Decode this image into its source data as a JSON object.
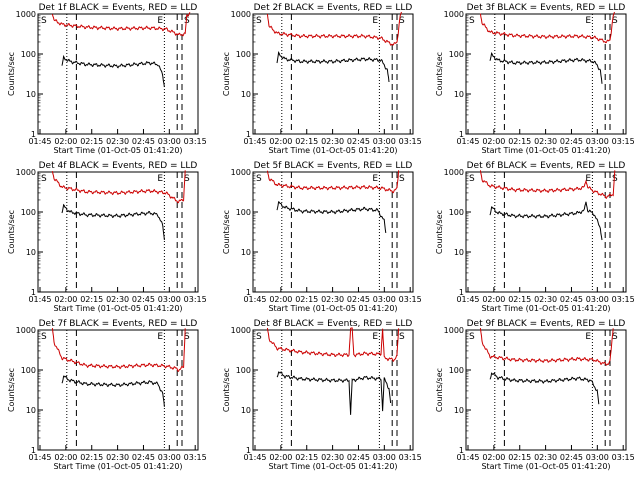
{
  "chart_data": [
    {
      "type": "line",
      "title": "Det 1f BLACK = Events, RED = LLD",
      "xlabel": "Start Time (01-Oct-05 01:41:20)",
      "ylabel": "Counts/sec",
      "xticks": [
        "01:45",
        "02:00",
        "02:15",
        "02:30",
        "02:45",
        "03:00",
        "03:15"
      ],
      "yticks": [
        "1",
        "10",
        "100",
        "1000"
      ],
      "ylim": [
        1,
        1000
      ],
      "yscale": "log",
      "xlim_min": [
        0,
        100
      ],
      "markers": [
        {
          "label": "S",
          "t": 0
        },
        {
          "label": "E",
          "t": 86
        },
        {
          "label": "S",
          "t": 95
        }
      ],
      "series": [
        {
          "color": "#cc0000",
          "t": [
            9,
            10,
            15,
            30,
            50,
            70,
            80,
            86,
            88,
            92,
            93,
            95
          ],
          "v": [
            1100,
            700,
            550,
            470,
            430,
            450,
            420,
            330,
            300,
            320,
            900,
            1100
          ]
        },
        {
          "color": "#000000",
          "t": [
            15,
            16,
            20,
            30,
            50,
            70,
            75,
            78,
            79
          ],
          "v": [
            50,
            80,
            65,
            55,
            50,
            60,
            55,
            30,
            15
          ]
        }
      ]
    },
    {
      "type": "line",
      "title": "Det 2f BLACK = Events, RED = LLD",
      "xlabel": "Start Time (01-Oct-05 01:41:20)",
      "ylabel": "Counts/sec",
      "xticks": [
        "01:45",
        "02:00",
        "02:15",
        "02:30",
        "02:45",
        "03:00",
        "03:15"
      ],
      "yticks": [
        "1",
        "10",
        "100",
        "1000"
      ],
      "ylim": [
        1,
        1000
      ],
      "yscale": "log",
      "markers": [
        {
          "label": "S",
          "t": 0
        },
        {
          "label": "E",
          "t": 86
        },
        {
          "label": "S",
          "t": 95
        }
      ],
      "series": [
        {
          "color": "#cc0000",
          "t": [
            9,
            10,
            15,
            30,
            50,
            70,
            80,
            85,
            88,
            90,
            92,
            93
          ],
          "v": [
            1100,
            500,
            330,
            280,
            280,
            280,
            250,
            190,
            170,
            200,
            900,
            1100
          ]
        },
        {
          "color": "#000000",
          "t": [
            15,
            16,
            20,
            30,
            50,
            70,
            80,
            84,
            85
          ],
          "v": [
            60,
            100,
            75,
            65,
            65,
            75,
            70,
            40,
            20
          ]
        }
      ]
    },
    {
      "type": "line",
      "title": "Det 3f BLACK = Events, RED = LLD",
      "xlabel": "Start Time (01-Oct-05 01:41:20)",
      "ylabel": "Counts/sec",
      "xticks": [
        "01:45",
        "02:00",
        "02:15",
        "02:30",
        "02:45",
        "03:00",
        "03:15"
      ],
      "yticks": [
        "1",
        "10",
        "100",
        "1000"
      ],
      "ylim": [
        1,
        1000
      ],
      "yscale": "log",
      "markers": [
        {
          "label": "S",
          "t": 0
        },
        {
          "label": "E",
          "t": 86
        },
        {
          "label": "S",
          "t": 95
        }
      ],
      "series": [
        {
          "color": "#cc0000",
          "t": [
            9,
            10,
            15,
            30,
            50,
            70,
            80,
            85,
            88,
            90,
            92,
            93
          ],
          "v": [
            1100,
            600,
            350,
            290,
            270,
            280,
            260,
            220,
            200,
            220,
            900,
            1100
          ]
        },
        {
          "color": "#000000",
          "t": [
            15,
            16,
            20,
            30,
            50,
            70,
            80,
            84,
            85
          ],
          "v": [
            70,
            95,
            70,
            60,
            62,
            72,
            65,
            40,
            18
          ]
        }
      ]
    },
    {
      "type": "line",
      "title": "Det 4f BLACK = Events, RED = LLD",
      "xlabel": "Start Time (01-Oct-05 01:41:20)",
      "ylabel": "Counts/sec",
      "xticks": [
        "01:45",
        "02:00",
        "02:15",
        "02:30",
        "02:45",
        "03:00",
        "03:15"
      ],
      "yticks": [
        "1",
        "10",
        "100",
        "1000"
      ],
      "ylim": [
        1,
        1000
      ],
      "yscale": "log",
      "markers": [
        {
          "label": "S",
          "t": 0
        },
        {
          "label": "E",
          "t": 86
        },
        {
          "label": "S",
          "t": 95
        }
      ],
      "series": [
        {
          "color": "#cc0000",
          "t": [
            9,
            10,
            15,
            30,
            50,
            70,
            80,
            86,
            88,
            91,
            92
          ],
          "v": [
            1100,
            700,
            420,
            320,
            300,
            340,
            300,
            200,
            180,
            210,
            1100
          ]
        },
        {
          "color": "#000000",
          "t": [
            15,
            16,
            20,
            30,
            50,
            70,
            75,
            78,
            79
          ],
          "v": [
            100,
            140,
            100,
            85,
            80,
            95,
            85,
            45,
            20
          ]
        }
      ]
    },
    {
      "type": "line",
      "title": "Det 5f BLACK = Events, RED = LLD",
      "xlabel": "Start Time (01-Oct-05 01:41:20)",
      "ylabel": "Counts/sec",
      "xticks": [
        "01:45",
        "02:00",
        "02:15",
        "02:30",
        "02:45",
        "03:00",
        "03:15"
      ],
      "yticks": [
        "1",
        "10",
        "100",
        "1000"
      ],
      "ylim": [
        1,
        1000
      ],
      "yscale": "log",
      "markers": [
        {
          "label": "S",
          "t": 0
        },
        {
          "label": "E",
          "t": 86
        },
        {
          "label": "S",
          "t": 95
        }
      ],
      "series": [
        {
          "color": "#cc0000",
          "t": [
            9,
            10,
            15,
            30,
            50,
            70,
            80,
            85,
            88,
            90,
            91
          ],
          "v": [
            1100,
            700,
            480,
            400,
            400,
            420,
            400,
            350,
            330,
            380,
            1100
          ]
        },
        {
          "color": "#000000",
          "t": [
            15,
            16,
            20,
            30,
            50,
            70,
            78,
            82,
            83
          ],
          "v": [
            120,
            170,
            130,
            105,
            100,
            120,
            110,
            60,
            30
          ]
        }
      ]
    },
    {
      "type": "line",
      "title": "Det 6f BLACK = Events, RED = LLD",
      "xlabel": "Start Time (01-Oct-05 01:41:20)",
      "ylabel": "Counts/sec",
      "xticks": [
        "01:45",
        "02:00",
        "02:15",
        "02:30",
        "02:45",
        "03:00",
        "03:15"
      ],
      "yticks": [
        "1",
        "10",
        "100",
        "1000"
      ],
      "ylim": [
        1,
        1000
      ],
      "yscale": "log",
      "markers": [
        {
          "label": "S",
          "t": 0
        },
        {
          "label": "E",
          "t": 86
        },
        {
          "label": "S",
          "t": 95
        }
      ],
      "series": [
        {
          "color": "#cc0000",
          "t": [
            9,
            10,
            15,
            30,
            50,
            70,
            74,
            75,
            76,
            80,
            86,
            88,
            92,
            93
          ],
          "v": [
            1100,
            650,
            450,
            360,
            340,
            380,
            420,
            650,
            420,
            330,
            260,
            240,
            280,
            1100
          ]
        },
        {
          "color": "#000000",
          "t": [
            15,
            16,
            20,
            30,
            50,
            70,
            74,
            75,
            76,
            80,
            84,
            85
          ],
          "v": [
            90,
            130,
            95,
            80,
            78,
            95,
            110,
            190,
            110,
            90,
            40,
            20
          ]
        }
      ]
    },
    {
      "type": "line",
      "title": "Det 7f BLACK = Events, RED = LLD",
      "xlabel": "Start Time (01-Oct-05 01:41:20)",
      "ylabel": "Counts/sec",
      "xticks": [
        "01:45",
        "02:00",
        "02:15",
        "02:30",
        "02:45",
        "03:00",
        "03:15"
      ],
      "yticks": [
        "1",
        "10",
        "100",
        "1000"
      ],
      "ylim": [
        1,
        1000
      ],
      "yscale": "log",
      "markers": [
        {
          "label": "S",
          "t": 0
        },
        {
          "label": "E",
          "t": 86
        },
        {
          "label": "S",
          "t": 95
        }
      ],
      "series": [
        {
          "color": "#cc0000",
          "t": [
            9,
            10,
            15,
            30,
            50,
            70,
            80,
            86,
            88,
            91,
            92
          ],
          "v": [
            1100,
            500,
            200,
            130,
            120,
            135,
            125,
            110,
            100,
            120,
            1100
          ]
        },
        {
          "color": "#000000",
          "t": [
            15,
            16,
            20,
            30,
            50,
            70,
            75,
            78,
            79
          ],
          "v": [
            50,
            70,
            55,
            45,
            42,
            50,
            45,
            25,
            12
          ]
        }
      ]
    },
    {
      "type": "line",
      "title": "Det 8f BLACK = Events, RED = LLD",
      "xlabel": "Start Time (01-Oct-05 01:41:20)",
      "ylabel": "Counts/sec",
      "xticks": [
        "01:45",
        "02:00",
        "02:15",
        "02:30",
        "02:45",
        "03:00",
        "03:15"
      ],
      "yticks": [
        "1",
        "10",
        "100",
        "1000"
      ],
      "ylim": [
        1,
        1000
      ],
      "yscale": "log",
      "markers": [
        {
          "label": "S",
          "t": 0
        },
        {
          "label": "E",
          "t": 86
        },
        {
          "label": "S",
          "t": 95
        }
      ],
      "series": [
        {
          "color": "#cc0000",
          "t": [
            9,
            10,
            15,
            30,
            50,
            60,
            61,
            62,
            63,
            64,
            70,
            78,
            80,
            81,
            82,
            88,
            90,
            91
          ],
          "v": [
            1100,
            600,
            350,
            280,
            240,
            240,
            1100,
            1100,
            240,
            240,
            260,
            250,
            260,
            1100,
            200,
            180,
            220,
            1100
          ]
        },
        {
          "color": "#000000",
          "t": [
            15,
            16,
            20,
            30,
            50,
            60,
            61,
            62,
            70,
            80,
            81,
            82,
            85,
            86
          ],
          "v": [
            70,
            90,
            70,
            60,
            55,
            55,
            8,
            55,
            65,
            60,
            10,
            60,
            35,
            15
          ]
        }
      ]
    },
    {
      "type": "line",
      "title": "Det 9f BLACK = Events, RED = LLD",
      "xlabel": "Start Time (01-Oct-05 01:41:20)",
      "ylabel": "Counts/sec",
      "xticks": [
        "01:45",
        "02:00",
        "02:15",
        "02:30",
        "02:45",
        "03:00",
        "03:15"
      ],
      "yticks": [
        "1",
        "10",
        "100",
        "1000"
      ],
      "ylim": [
        1,
        1000
      ],
      "yscale": "log",
      "markers": [
        {
          "label": "S",
          "t": 0
        },
        {
          "label": "E",
          "t": 86
        },
        {
          "label": "S",
          "t": 95
        }
      ],
      "series": [
        {
          "color": "#cc0000",
          "t": [
            9,
            10,
            15,
            30,
            50,
            70,
            80,
            85,
            88,
            90,
            92
          ],
          "v": [
            1100,
            500,
            220,
            180,
            170,
            190,
            180,
            150,
            140,
            160,
            1100
          ]
        },
        {
          "color": "#000000",
          "t": [
            15,
            16,
            20,
            30,
            50,
            70,
            78,
            82,
            83
          ],
          "v": [
            60,
            85,
            65,
            55,
            52,
            62,
            55,
            30,
            14
          ]
        }
      ]
    }
  ]
}
